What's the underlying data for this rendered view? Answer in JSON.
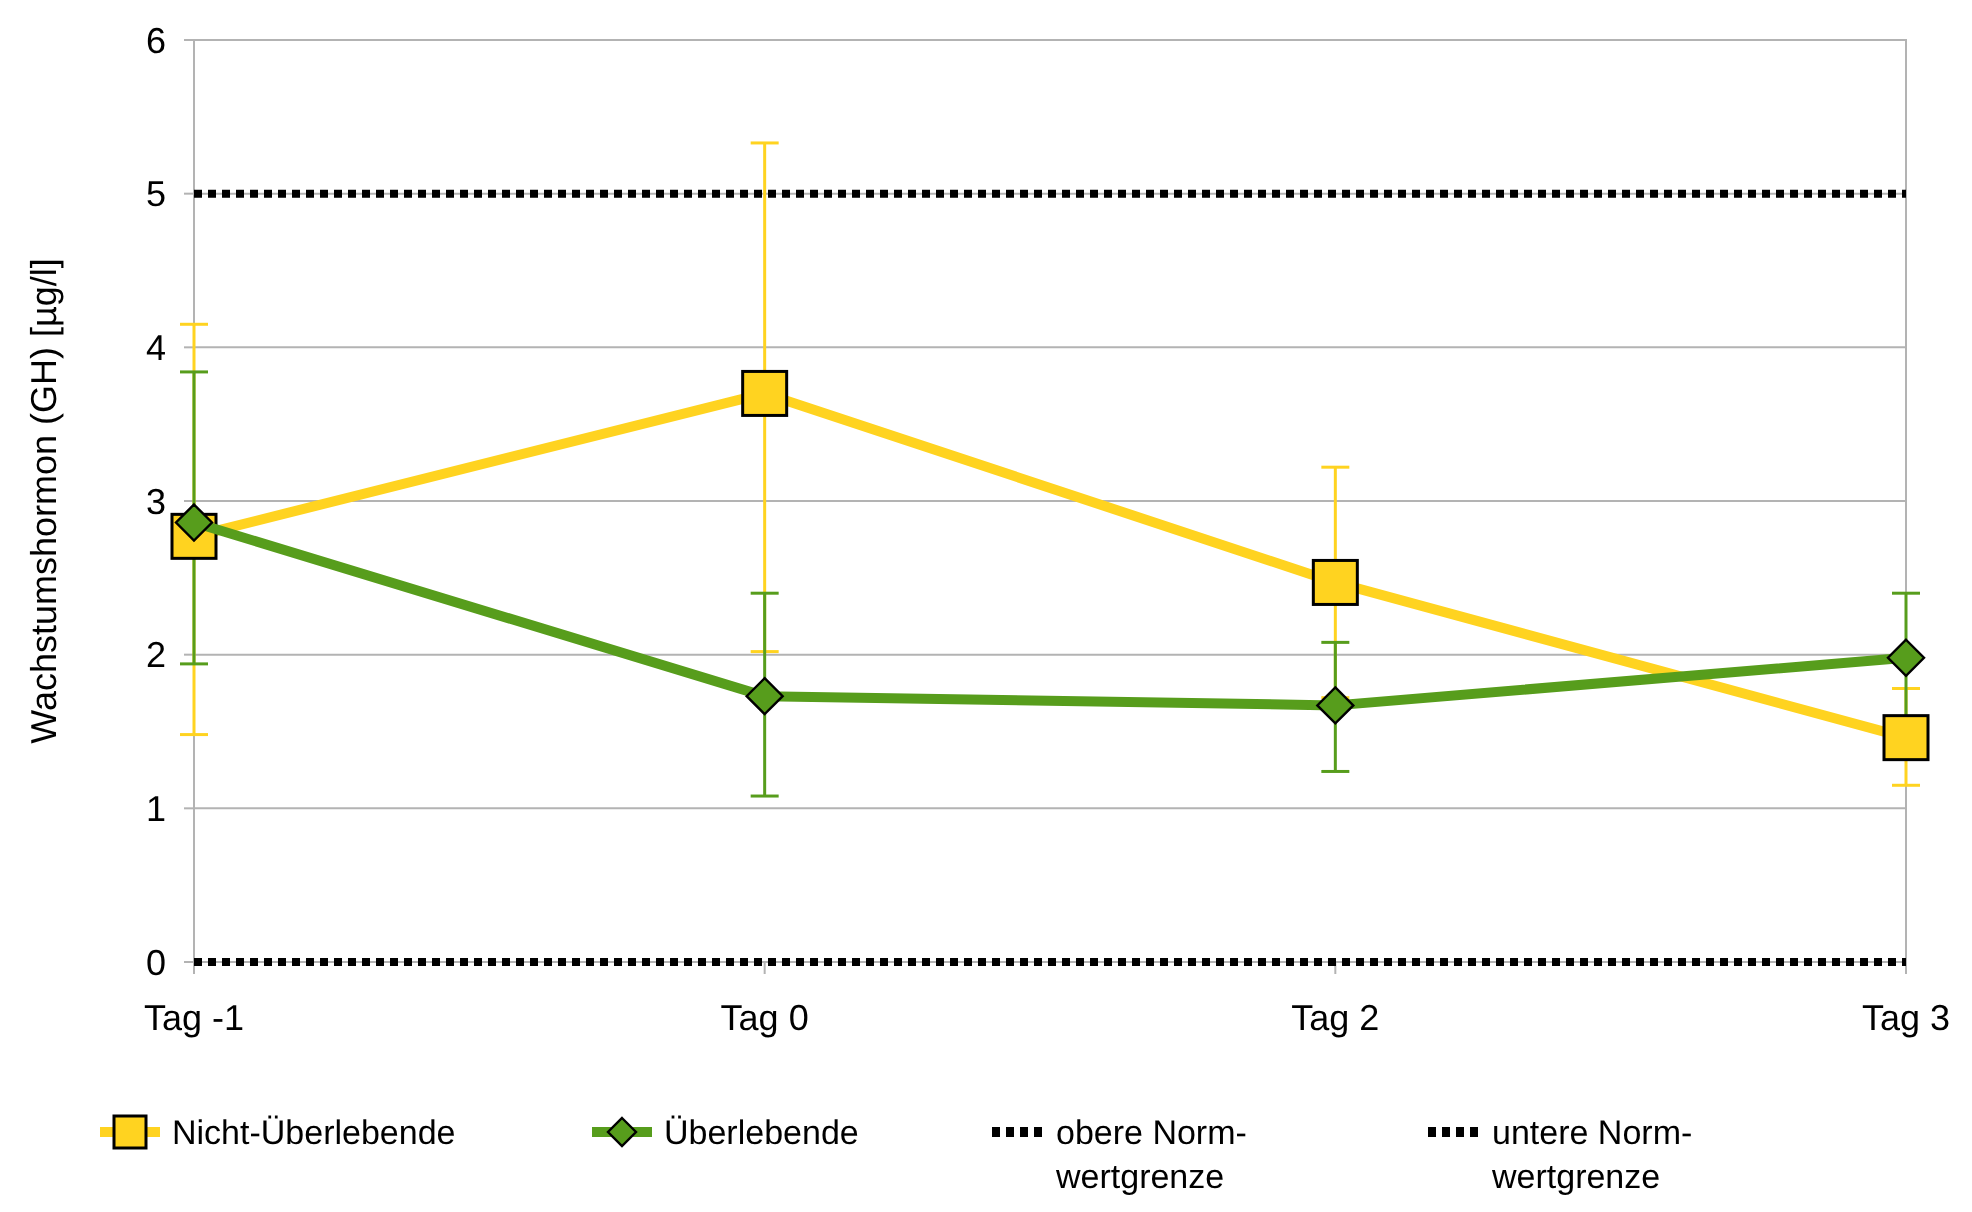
{
  "chart_data": {
    "type": "line",
    "ylabel": "Wachstumshormon (GH) [µg/l]",
    "categories": [
      "Tag -1",
      "Tag 0",
      "Tag 2",
      "Tag 3"
    ],
    "series": [
      {
        "name": "Nicht-Überlebende",
        "color": "#ffd320",
        "marker": "square",
        "values": [
          2.77,
          3.7,
          2.47,
          1.46
        ],
        "errors": [
          [
            1.48,
            4.15
          ],
          [
            2.02,
            5.33
          ],
          [
            1.72,
            3.22
          ],
          [
            1.15,
            1.78
          ]
        ]
      },
      {
        "name": "Überlebende",
        "color": "#579d1c",
        "marker": "diamond",
        "values": [
          2.86,
          1.73,
          1.67,
          1.98
        ],
        "errors": [
          [
            1.94,
            3.84
          ],
          [
            1.08,
            2.4
          ],
          [
            1.24,
            2.08
          ],
          [
            1.56,
            2.4
          ]
        ]
      }
    ],
    "ref_lines": [
      {
        "axis": "y",
        "value": 5,
        "label": "obere Norm-wertgrenze",
        "color": "#000000",
        "line_style": "dotted"
      },
      {
        "axis": "y",
        "value": 0,
        "label": "untere Norm-wertgrenze",
        "color": "#000000",
        "line_style": "dotted"
      }
    ],
    "ylim": [
      0,
      6
    ],
    "yticks": [
      0,
      1,
      2,
      3,
      4,
      5,
      6
    ],
    "grid": "y",
    "legend": "bottom"
  }
}
